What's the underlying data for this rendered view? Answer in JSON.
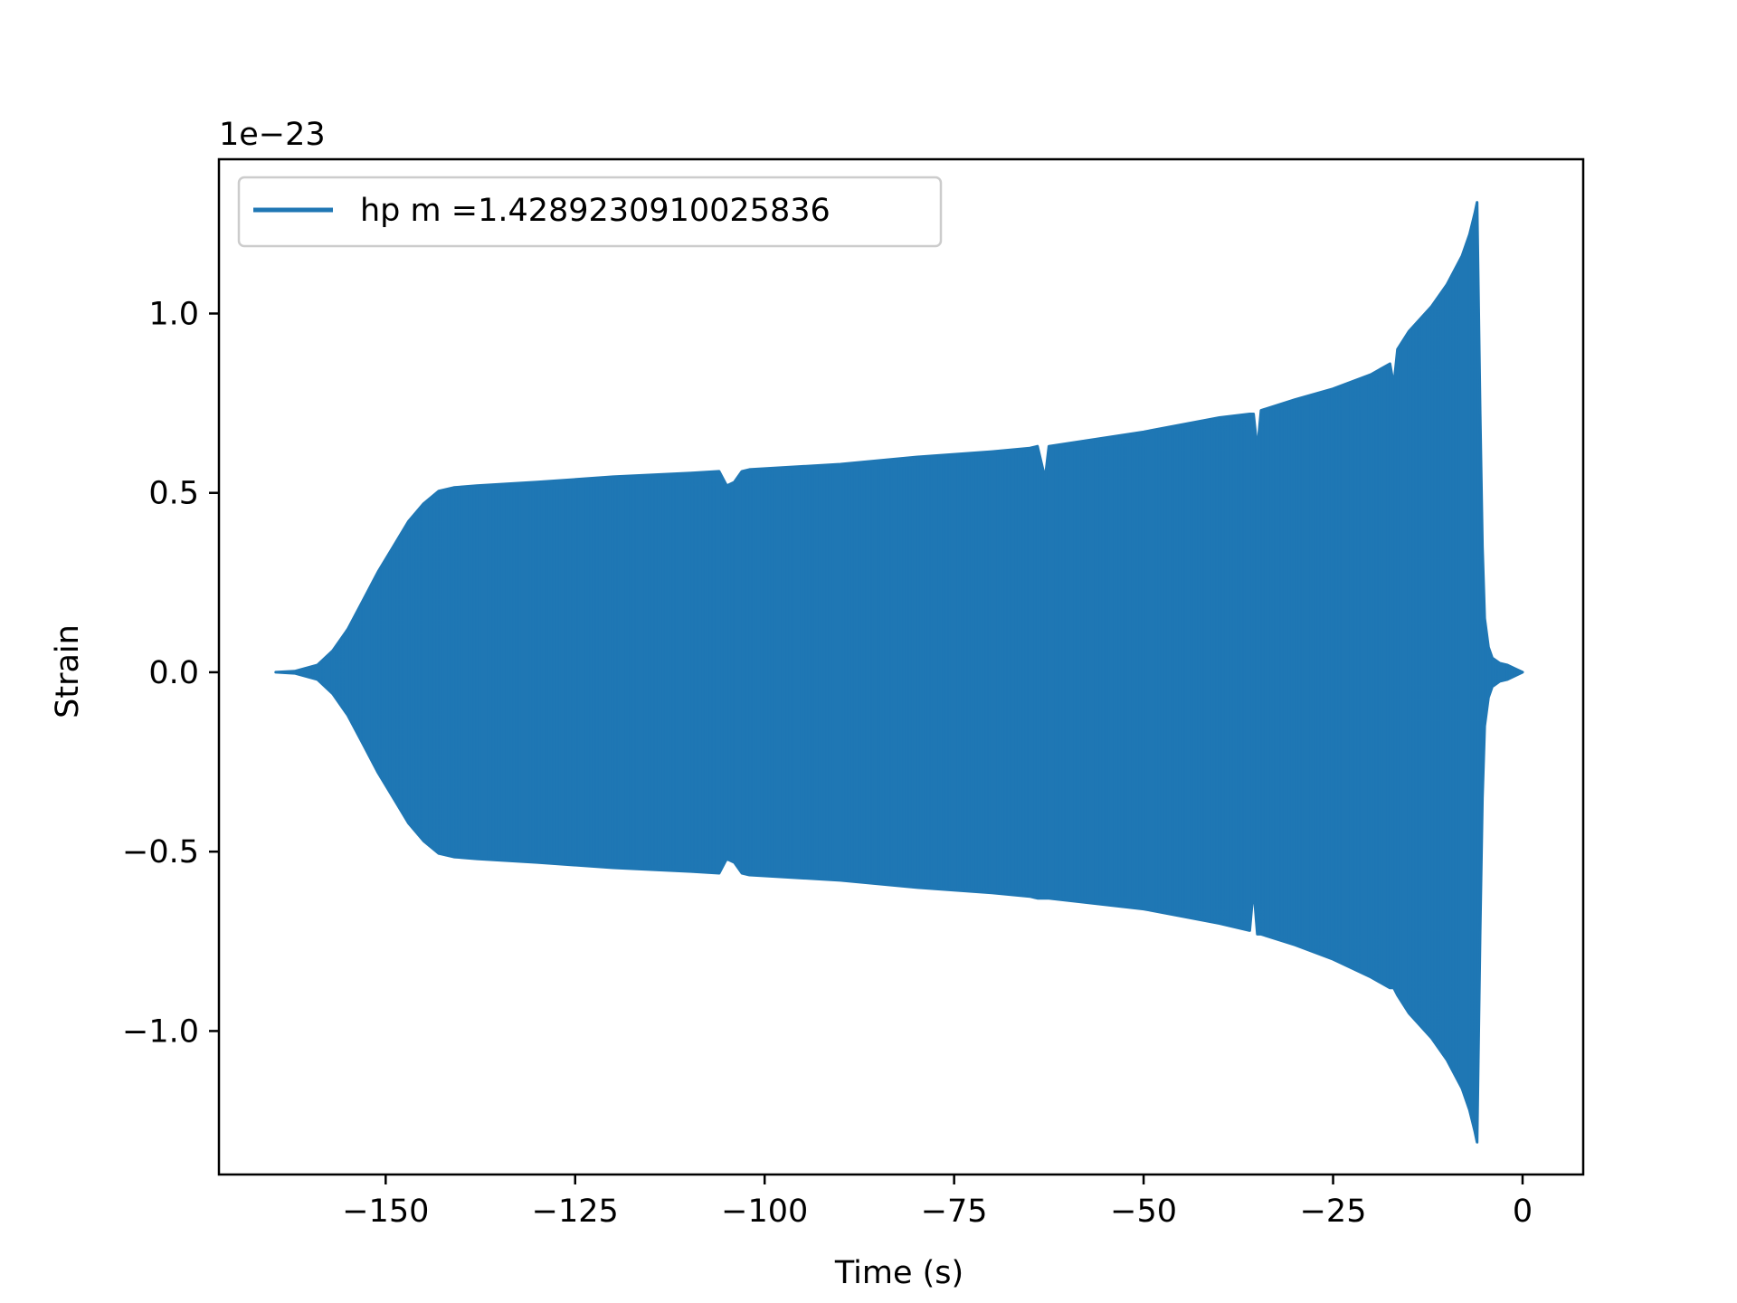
{
  "chart_data": {
    "type": "line",
    "title": "",
    "xlabel": "Time (s)",
    "ylabel": "Strain",
    "y_offset_label": "1e−23",
    "xlim": [
      -172,
      8
    ],
    "ylim": [
      -1.4,
      1.43
    ],
    "x_ticks": [
      -150,
      -125,
      -100,
      -75,
      -50,
      -25,
      0
    ],
    "x_tick_labels": [
      "−150",
      "−125",
      "−100",
      "−75",
      "−50",
      "−25",
      "0"
    ],
    "y_ticks": [
      1.0,
      0.5,
      0.0,
      -0.5,
      -1.0
    ],
    "y_tick_labels": [
      "1.0",
      "0.5",
      "0.0",
      "−0.5",
      "−1.0"
    ],
    "grid": false,
    "legend_position": "top-left",
    "series": [
      {
        "name": "hp m =1.4289230910025836",
        "color": "#1f77b4",
        "rendering": "rapidly oscillating waveform; values below trace its amplitude envelope (upper = +amplitude, lower = -amplitude)",
        "envelope_x": [
          -164.5,
          -162,
          -159,
          -157,
          -155,
          -153,
          -151,
          -149,
          -147,
          -145,
          -143,
          -141,
          -138,
          -130,
          -120,
          -110,
          -106,
          -105,
          -104,
          -103,
          -102,
          -90,
          -80,
          -70,
          -65,
          -64,
          -63,
          -62.5,
          -50,
          -40,
          -36,
          -35.5,
          -35,
          -34.5,
          -30,
          -25,
          -20,
          -17.5,
          -17,
          -16.5,
          -15,
          -12,
          -10,
          -8,
          -7,
          -6.3,
          -6,
          -5.6,
          -5.3,
          -5,
          -4.5,
          -4,
          -3,
          -2,
          -1,
          0
        ],
        "envelope_upper": [
          0.0,
          0.003,
          0.02,
          0.06,
          0.12,
          0.2,
          0.28,
          0.35,
          0.42,
          0.47,
          0.505,
          0.515,
          0.52,
          0.53,
          0.545,
          0.555,
          0.56,
          0.52,
          0.53,
          0.56,
          0.565,
          0.58,
          0.6,
          0.615,
          0.625,
          0.63,
          0.54,
          0.63,
          0.67,
          0.71,
          0.72,
          0.72,
          0.62,
          0.73,
          0.76,
          0.79,
          0.83,
          0.86,
          0.8,
          0.9,
          0.95,
          1.02,
          1.08,
          1.16,
          1.22,
          1.28,
          1.31,
          0.72,
          0.35,
          0.15,
          0.07,
          0.04,
          0.025,
          0.02,
          0.01,
          0.0
        ],
        "envelope_lower": [
          0.0,
          -0.003,
          -0.02,
          -0.06,
          -0.12,
          -0.2,
          -0.28,
          -0.35,
          -0.42,
          -0.47,
          -0.505,
          -0.515,
          -0.52,
          -0.53,
          -0.545,
          -0.555,
          -0.56,
          -0.52,
          -0.53,
          -0.56,
          -0.565,
          -0.58,
          -0.6,
          -0.615,
          -0.625,
          -0.63,
          -0.63,
          -0.63,
          -0.66,
          -0.7,
          -0.72,
          -0.6,
          -0.73,
          -0.73,
          -0.76,
          -0.8,
          -0.85,
          -0.88,
          -0.88,
          -0.9,
          -0.95,
          -1.02,
          -1.08,
          -1.16,
          -1.22,
          -1.28,
          -1.31,
          -0.72,
          -0.35,
          -0.15,
          -0.07,
          -0.04,
          -0.025,
          -0.02,
          -0.01,
          0.0
        ]
      }
    ]
  }
}
